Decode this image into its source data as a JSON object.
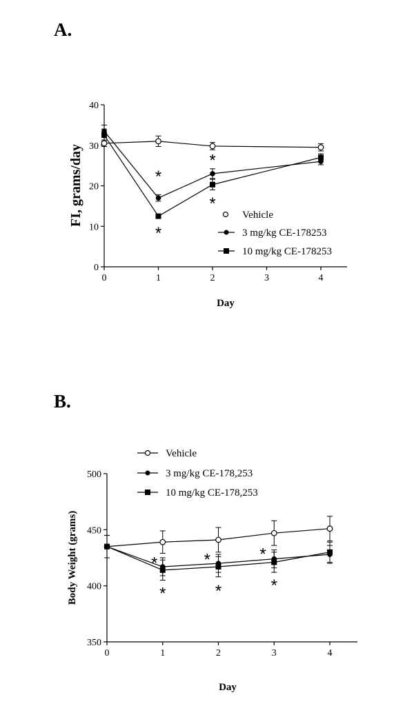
{
  "chart_data": [
    {
      "panel_label": "A.",
      "type": "line",
      "xlabel": "Day",
      "ylabel": "FI, grams/day",
      "xlim": [
        0,
        4.5
      ],
      "ylim": [
        0,
        40
      ],
      "x_ticks": [
        0,
        1,
        2,
        3,
        4
      ],
      "y_ticks": [
        0,
        10,
        20,
        30,
        40
      ],
      "legend_placement": "bottom-right",
      "significance_marker": "*",
      "series": [
        {
          "name": "Vehicle",
          "marker": "open-circle",
          "x": [
            0,
            1,
            2,
            4
          ],
          "values": [
            30.5,
            31,
            29.8,
            29.5
          ],
          "err": [
            0.8,
            1.3,
            0.9,
            0.9
          ]
        },
        {
          "name": "3 mg/kg CE-178253",
          "marker": "filled-circle",
          "x": [
            0,
            1,
            2,
            4
          ],
          "values": [
            33.5,
            17,
            23,
            26
          ],
          "err": [
            1.5,
            0.8,
            1.2,
            0.8
          ]
        },
        {
          "name": "10 mg/kg CE-178253",
          "marker": "filled-square",
          "x": [
            0,
            1,
            2,
            4
          ],
          "values": [
            32.5,
            12.5,
            20.3,
            27
          ],
          "err": [
            1.5,
            0.5,
            1.3,
            0.9
          ]
        }
      ],
      "significance": [
        {
          "x": 1,
          "y": 22.5
        },
        {
          "x": 1,
          "y": 8.5
        },
        {
          "x": 2,
          "y": 26.5
        },
        {
          "x": 2,
          "y": 15.8
        }
      ]
    },
    {
      "panel_label": "B.",
      "type": "line",
      "xlabel": "Day",
      "ylabel": "Body Weight (grams)",
      "xlim": [
        0,
        4.5
      ],
      "ylim": [
        350,
        500
      ],
      "x_ticks": [
        0,
        1,
        2,
        3,
        4
      ],
      "y_ticks": [
        350,
        400,
        450,
        500
      ],
      "legend_placement": "top-left",
      "significance_marker": "*",
      "series": [
        {
          "name": "Vehicle",
          "marker": "open-circle",
          "x": [
            0,
            1,
            2,
            3,
            4
          ],
          "values": [
            435,
            439,
            441,
            447,
            451
          ],
          "err": [
            10,
            10,
            11,
            11,
            11
          ]
        },
        {
          "name": "3 mg/kg CE-178,253",
          "marker": "filled-circle",
          "x": [
            0,
            1,
            2,
            3,
            4
          ],
          "values": [
            435,
            417,
            420,
            424,
            428
          ],
          "err": [
            10,
            8,
            8,
            8,
            8
          ]
        },
        {
          "name": "10 mg/kg CE-178,253",
          "marker": "filled-square",
          "x": [
            0,
            1,
            2,
            3,
            4
          ],
          "values": [
            435,
            414,
            417,
            421,
            430
          ],
          "err": [
            10,
            9,
            9,
            9,
            9
          ]
        }
      ],
      "significance": [
        {
          "x": 0.85,
          "y": 421
        },
        {
          "x": 1,
          "y": 394
        },
        {
          "x": 1.8,
          "y": 424
        },
        {
          "x": 2,
          "y": 396
        },
        {
          "x": 2.8,
          "y": 429
        },
        {
          "x": 3,
          "y": 401
        }
      ]
    }
  ]
}
